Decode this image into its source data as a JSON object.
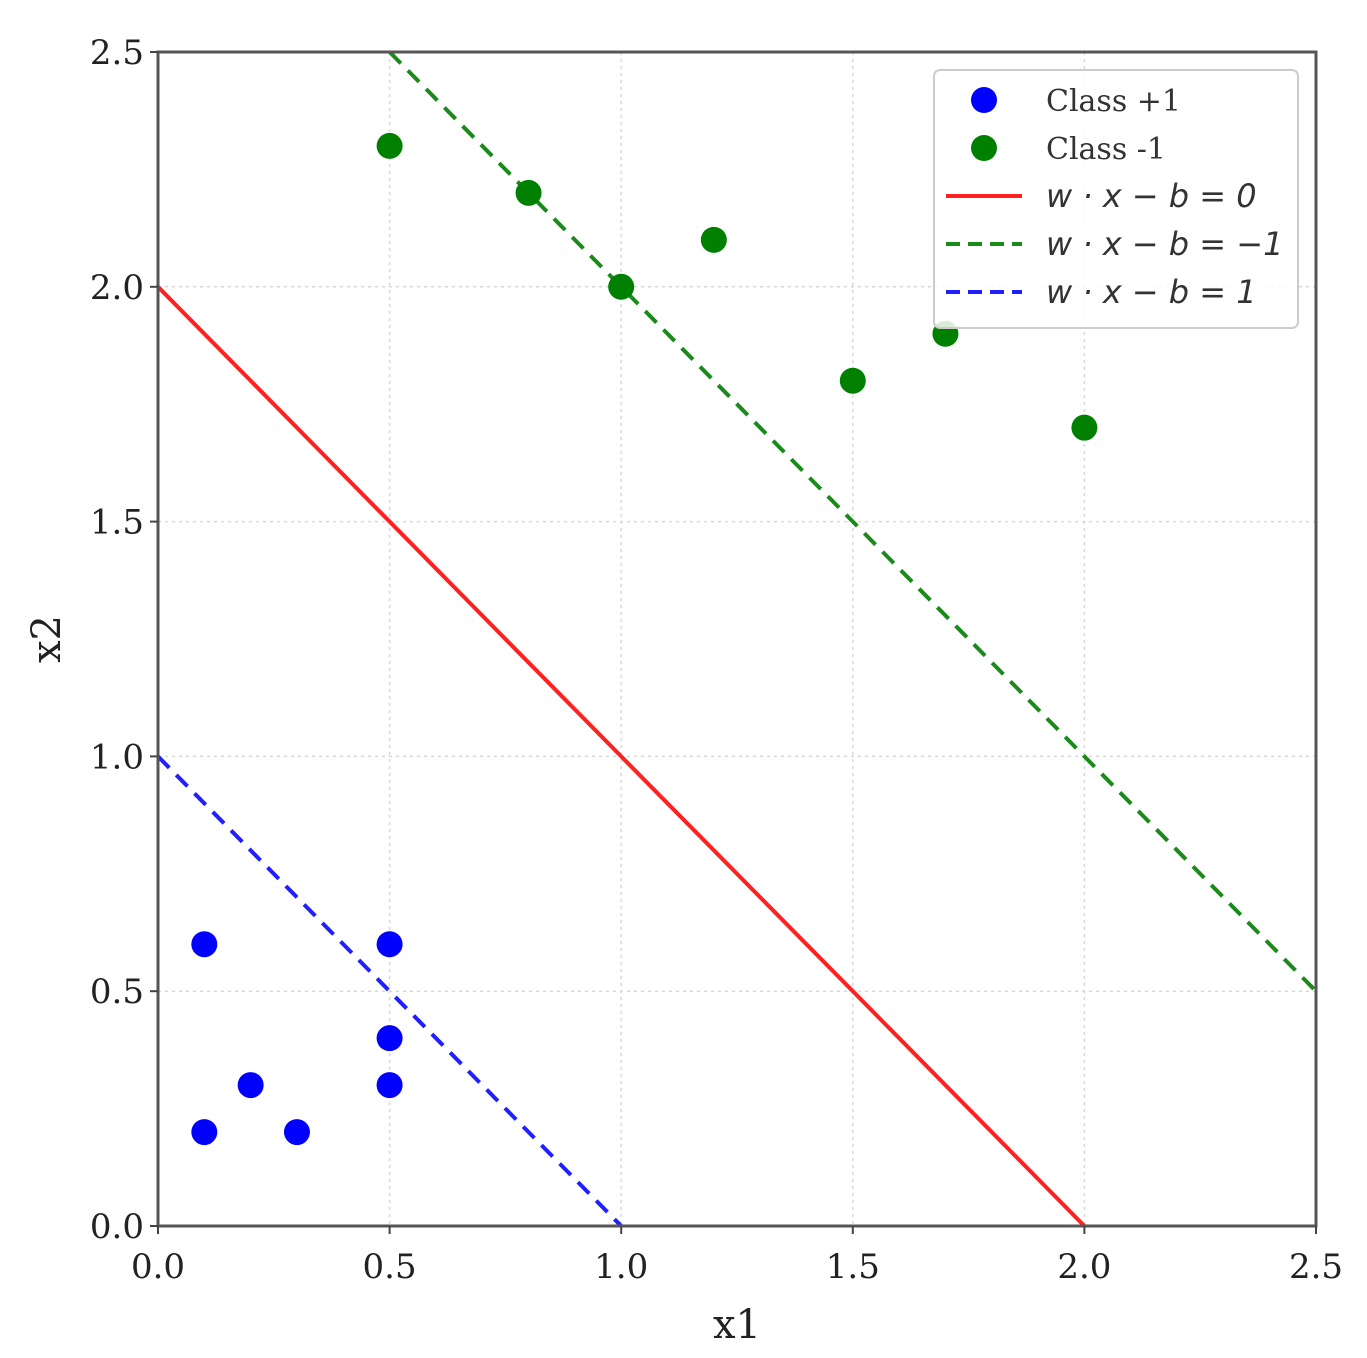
{
  "chart_data": {
    "type": "scatter",
    "title": "",
    "xlabel": "x1",
    "ylabel": "x2",
    "xlim": [
      0.0,
      2.5
    ],
    "ylim": [
      0.0,
      2.5
    ],
    "xticks": [
      "0.0",
      "0.5",
      "1.0",
      "1.5",
      "2.0",
      "2.5"
    ],
    "yticks": [
      "0.0",
      "0.5",
      "1.0",
      "1.5",
      "2.0",
      "2.5"
    ],
    "grid": true,
    "legend_position": "top-right",
    "series": [
      {
        "name": "Class +1",
        "kind": "points",
        "color": "#0000ff",
        "points": [
          {
            "x": 0.1,
            "y": 0.6
          },
          {
            "x": 0.5,
            "y": 0.6
          },
          {
            "x": 0.5,
            "y": 0.4
          },
          {
            "x": 0.2,
            "y": 0.3
          },
          {
            "x": 0.5,
            "y": 0.3
          },
          {
            "x": 0.1,
            "y": 0.2
          },
          {
            "x": 0.3,
            "y": 0.2
          }
        ]
      },
      {
        "name": "Class -1",
        "kind": "points",
        "color": "#008000",
        "points": [
          {
            "x": 0.5,
            "y": 2.3
          },
          {
            "x": 0.8,
            "y": 2.2
          },
          {
            "x": 1.2,
            "y": 2.1
          },
          {
            "x": 1.0,
            "y": 2.0
          },
          {
            "x": 1.7,
            "y": 1.9
          },
          {
            "x": 1.5,
            "y": 1.8
          },
          {
            "x": 2.0,
            "y": 1.7
          }
        ]
      },
      {
        "name": "w · x − b = 0",
        "kind": "line",
        "style": "solid",
        "color": "#ff2020",
        "points": [
          {
            "x": 0.0,
            "y": 2.0
          },
          {
            "x": 2.0,
            "y": 0.0
          }
        ]
      },
      {
        "name": "w · x − b = −1",
        "kind": "line",
        "style": "dashed",
        "color": "#1a8a1a",
        "points": [
          {
            "x": 0.5,
            "y": 2.5
          },
          {
            "x": 2.5,
            "y": 0.5
          }
        ]
      },
      {
        "name": "w · x − b = 1",
        "kind": "line",
        "style": "dashed",
        "color": "#2020ff",
        "points": [
          {
            "x": 0.0,
            "y": 1.0
          },
          {
            "x": 1.0,
            "y": 0.0
          }
        ]
      }
    ]
  }
}
